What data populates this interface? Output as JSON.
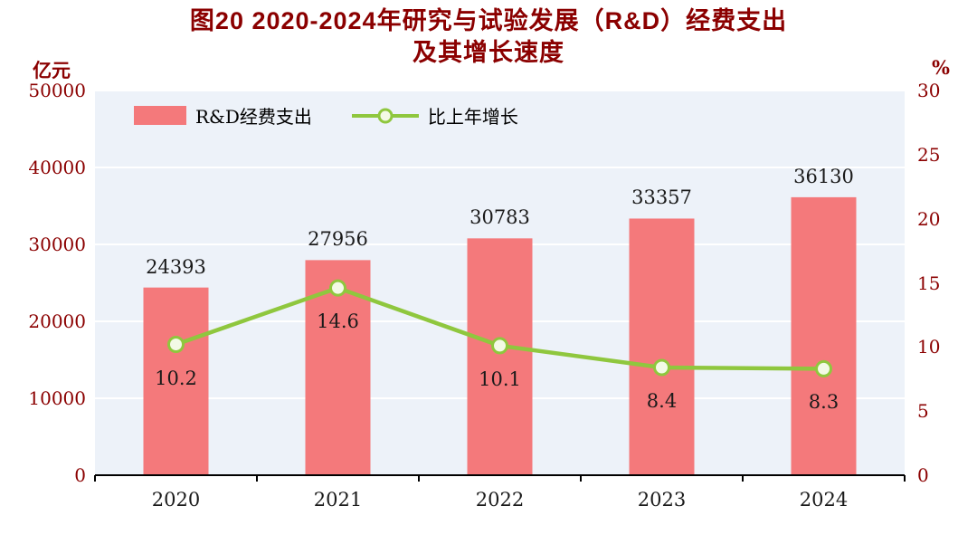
{
  "title": {
    "line1": "图20  2020-2024年研究与试验发展（R&D）经费支出",
    "line2": "及其增长速度"
  },
  "colors": {
    "title": "#8b0000",
    "axis_label": "#8b0000",
    "bar": "#f4797b",
    "line": "#8fc73e",
    "marker_fill": "#f3fae6",
    "plot_bg": "#edf2f9",
    "grid": "#ffffff",
    "axis_line": "#000000",
    "text": "#1a1a1a"
  },
  "chart_data": {
    "type": "bar",
    "categories": [
      "2020",
      "2021",
      "2022",
      "2023",
      "2024"
    ],
    "series": [
      {
        "name": "R&D经费支出",
        "type": "bar",
        "axis": "left",
        "values": [
          24393,
          27956,
          30783,
          33357,
          36130
        ],
        "color": "#f4797b"
      },
      {
        "name": "比上年增长",
        "type": "line",
        "axis": "right",
        "values": [
          10.2,
          14.6,
          10.1,
          8.4,
          8.3
        ],
        "color": "#8fc73e"
      }
    ],
    "left_axis": {
      "unit": "亿元",
      "min": 0,
      "max": 50000,
      "step": 10000
    },
    "right_axis": {
      "unit": "%",
      "min": 0,
      "max": 30,
      "step": 5
    },
    "grid": true,
    "legend_position": "top-left-inside"
  }
}
